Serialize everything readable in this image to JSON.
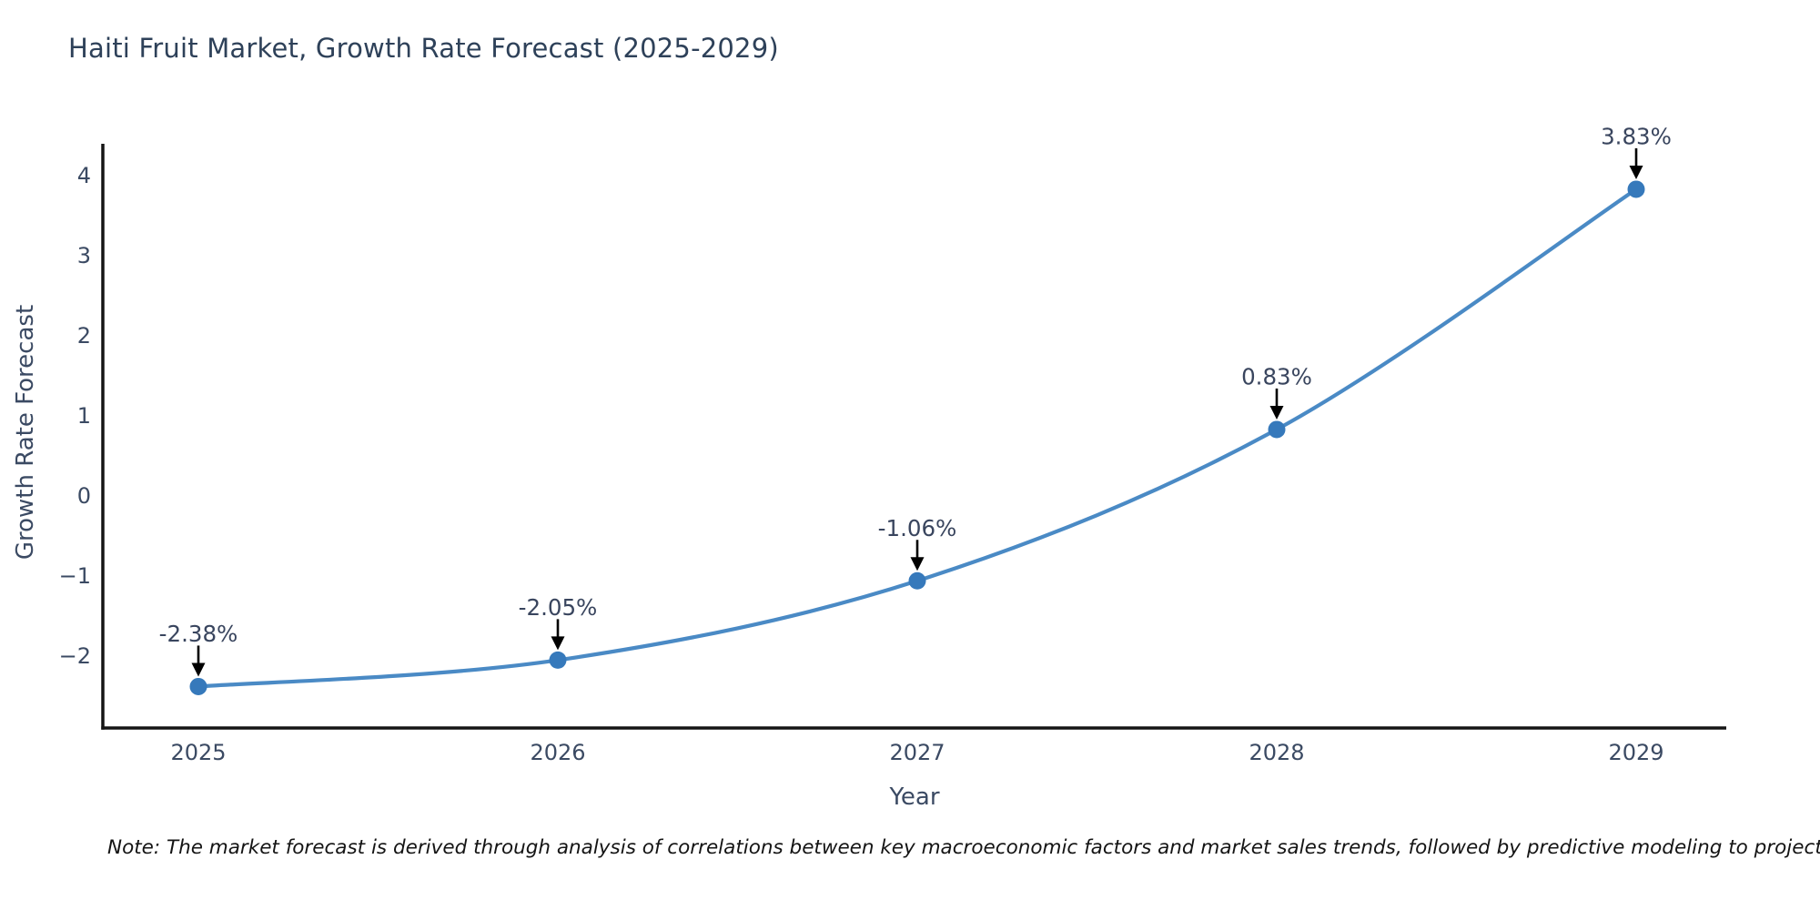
{
  "title": "Haiti Fruit Market, Growth Rate Forecast (2025-2029)",
  "note": "Note: The market forecast is derived through analysis of correlations between key macroeconomic factors and market sales trends, followed by predictive modeling to project future sales",
  "chart_data": {
    "type": "line",
    "title": "Haiti Fruit Market, Growth Rate Forecast (2025-2029)",
    "xlabel": "Year",
    "ylabel": "Growth Rate Forecast",
    "x": [
      "2025",
      "2026",
      "2027",
      "2028",
      "2029"
    ],
    "series": [
      {
        "name": "Growth Rate Forecast",
        "values": [
          -2.38,
          -2.05,
          -1.06,
          0.83,
          3.83
        ],
        "point_labels": [
          "-2.38%",
          "-2.05%",
          "-1.06%",
          "0.83%",
          "3.83%"
        ]
      }
    ],
    "yticks": [
      -2,
      -1,
      0,
      1,
      2,
      3,
      4
    ],
    "ylim": [
      -2.9,
      4.4
    ],
    "grid": false,
    "legend": "none",
    "annotation_style": "label-with-down-arrow",
    "line_color": "#4a8ac5",
    "marker_color": "#3679bb",
    "arrow_color": "#000000",
    "axis_color": "#151515",
    "tick_color": "#3b4a63",
    "annotation_text_color": "#39455e"
  }
}
